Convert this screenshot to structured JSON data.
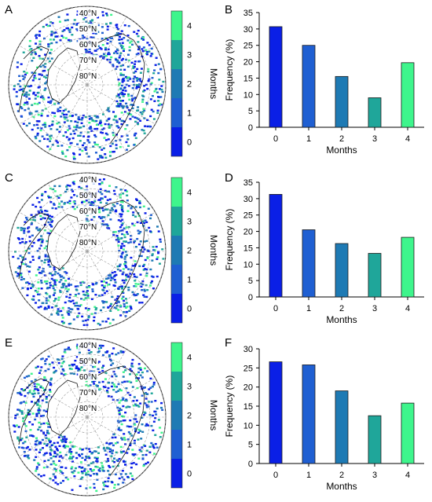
{
  "panels": [
    {
      "map_label": "A",
      "chart_label": "B",
      "colorbar": {
        "label": "Months",
        "ticks": [
          "0",
          "1",
          "2",
          "3",
          "4"
        ]
      },
      "lat_labels": [
        "40°N",
        "50°N",
        "60°N",
        "70°N",
        "80°N"
      ]
    },
    {
      "map_label": "C",
      "chart_label": "D",
      "colorbar": {
        "label": "Months",
        "ticks": [
          "0",
          "1",
          "2",
          "3",
          "4"
        ]
      },
      "lat_labels": [
        "40°N",
        "50°N",
        "60°N",
        "70°N",
        "80°N"
      ]
    },
    {
      "map_label": "E",
      "chart_label": "F",
      "colorbar": {
        "label": "Months",
        "ticks": [
          "0",
          "1",
          "2",
          "3",
          "4"
        ]
      },
      "lat_labels": [
        "40°N",
        "50°N",
        "60°N",
        "70°N",
        "80°N"
      ]
    }
  ],
  "colors": {
    "month_0": "#0a1fe6",
    "month_1": "#1f5fd2",
    "month_2": "#1e7ab4",
    "month_3": "#1fa69a",
    "month_4": "#3ef58c",
    "land": "#ffffff",
    "coast": "#111111"
  },
  "chart_data": [
    {
      "type": "bar",
      "panel": "B",
      "categories": [
        "0",
        "1",
        "2",
        "3",
        "4"
      ],
      "values": [
        30.7,
        25.0,
        15.5,
        9.0,
        19.7
      ],
      "xlabel": "Months",
      "ylabel": "Frequency (%)",
      "ylim": [
        0,
        35
      ],
      "yticks": [
        "0",
        "5",
        "10",
        "15",
        "20",
        "25",
        "30",
        "35"
      ],
      "grid": false
    },
    {
      "type": "bar",
      "panel": "D",
      "categories": [
        "0",
        "1",
        "2",
        "3",
        "4"
      ],
      "values": [
        31.3,
        20.5,
        16.3,
        13.3,
        18.2
      ],
      "xlabel": "Months",
      "ylabel": "Frequency (%)",
      "ylim": [
        0,
        35
      ],
      "yticks": [
        "0",
        "5",
        "10",
        "15",
        "20",
        "25",
        "30",
        "35"
      ],
      "grid": false
    },
    {
      "type": "bar",
      "panel": "F",
      "categories": [
        "0",
        "1",
        "2",
        "3",
        "4"
      ],
      "values": [
        26.6,
        25.8,
        19.0,
        12.5,
        15.8
      ],
      "xlabel": "Months",
      "ylabel": "Frequency (%)",
      "ylim": [
        0,
        30
      ],
      "yticks": [
        "0",
        "5",
        "10",
        "15",
        "20",
        "25",
        "30"
      ],
      "grid": false
    }
  ]
}
